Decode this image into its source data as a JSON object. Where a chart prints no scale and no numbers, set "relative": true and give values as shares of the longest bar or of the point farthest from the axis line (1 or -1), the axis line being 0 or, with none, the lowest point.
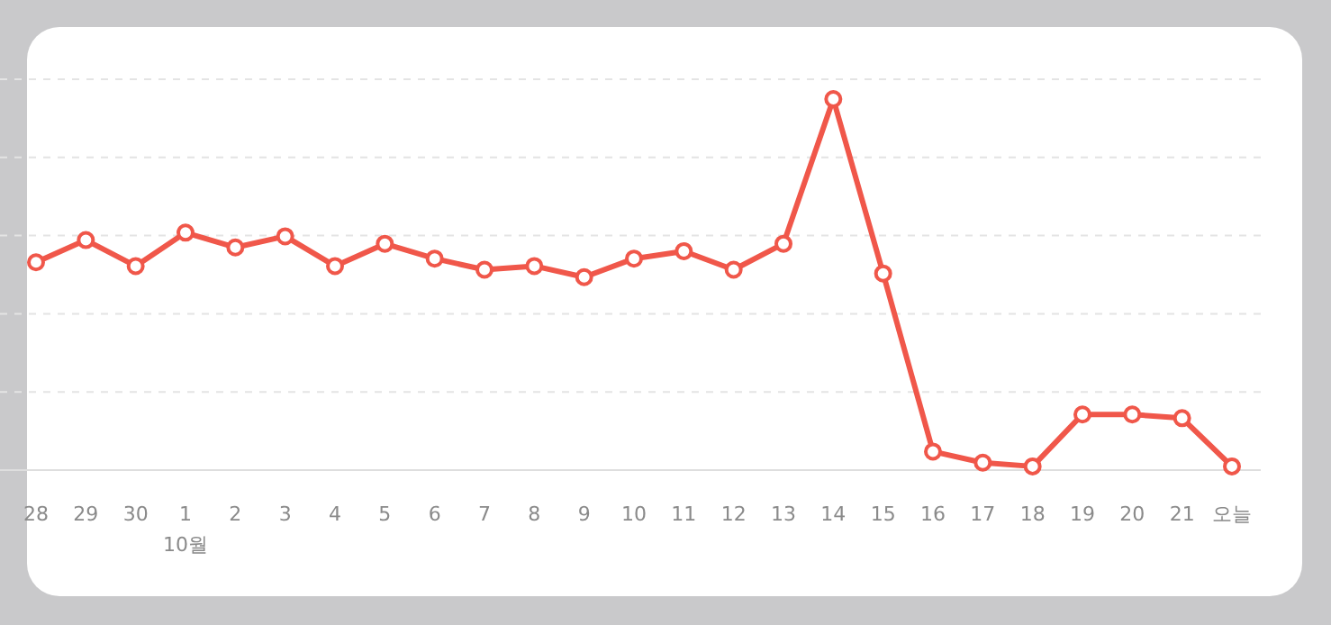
{
  "chart_data": {
    "type": "line",
    "relative": true,
    "grid": "y",
    "marker": "circle",
    "line_style": "solid",
    "categories": [
      "28",
      "29",
      "30",
      "1\n10월",
      "2",
      "3",
      "4",
      "5",
      "6",
      "7",
      "8",
      "9",
      "10",
      "11",
      "12",
      "13",
      "14",
      "15",
      "16",
      "17",
      "18",
      "19",
      "20",
      "21",
      "오늘"
    ],
    "series": [
      {
        "color": "#f0574a",
        "values": [
          0.56,
          0.62,
          0.55,
          0.64,
          0.6,
          0.63,
          0.55,
          0.61,
          0.57,
          0.54,
          0.55,
          0.52,
          0.57,
          0.59,
          0.54,
          0.61,
          1,
          0.53,
          0.05,
          0.02,
          0.01,
          0.15,
          0.15,
          0.14,
          0.01
        ]
      }
    ]
  }
}
